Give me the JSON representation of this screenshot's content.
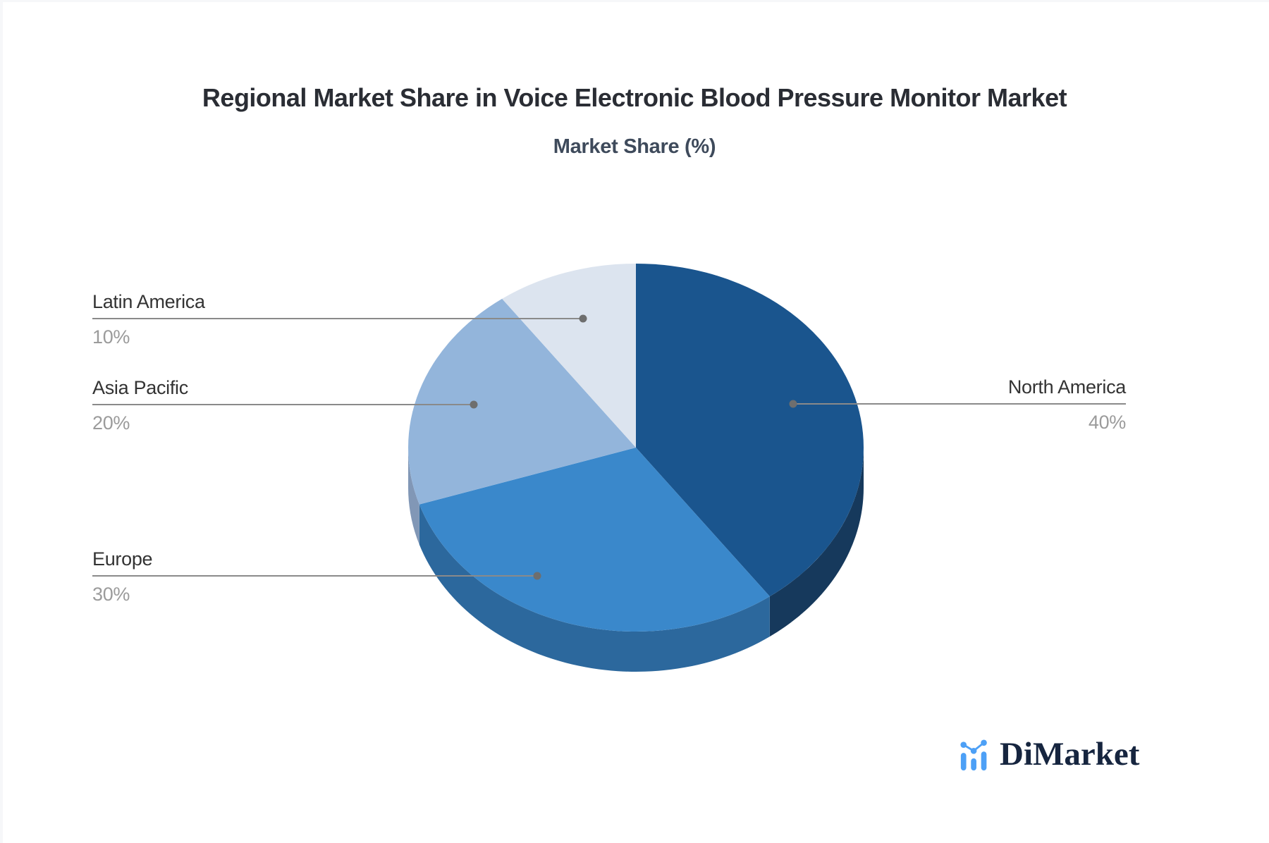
{
  "header": {
    "title": "Regional Market Share in Voice Electronic Blood Pressure Monitor Market",
    "subtitle": "Market Share (%)"
  },
  "chart_data": {
    "type": "pie",
    "style": "3d",
    "title": "Regional Market Share in Voice Electronic Blood Pressure Monitor Market",
    "subtitle": "Market Share (%)",
    "unit": "%",
    "start_angle_deg": 0,
    "direction": "clockwise",
    "legend_position": "none",
    "labels_style": "leader-lines",
    "slices": [
      {
        "label": "North America",
        "value": 40,
        "pct_label": "40%",
        "color": "#1A558E",
        "side_color": "#16395C"
      },
      {
        "label": "Europe",
        "value": 30,
        "pct_label": "30%",
        "color": "#3A88CB",
        "side_color": "#2C689D"
      },
      {
        "label": "Asia Pacific",
        "value": 20,
        "pct_label": "20%",
        "color": "#93B5DB",
        "side_color": "#8197B6"
      },
      {
        "label": "Latin America",
        "value": 10,
        "pct_label": "10%",
        "color": "#DCE4EF",
        "side_color": "#C2CCDD"
      }
    ],
    "leader_line_color": "#8a8a8a",
    "leader_dot_color": "#6e6e6e",
    "label_text_color": "#333333",
    "pct_text_color": "#9b9b9b"
  },
  "logo": {
    "text": "DiMarket",
    "icon": "bar-line-chart-icon",
    "icon_color": "#4DA0F6",
    "text_color": "#16253f"
  }
}
